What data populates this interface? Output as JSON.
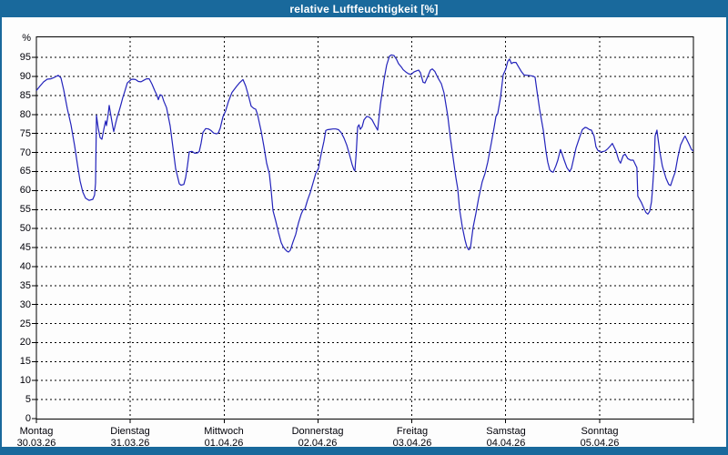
{
  "window": {
    "title": "relative Luftfeuchtigkeit [%]"
  },
  "colors": {
    "titlebar_bg": "#19699c",
    "titlebar_text": "#ffffff",
    "window_border": "#19699c",
    "content_bg": "#fdfdfd",
    "plot_bg": "#fefefe",
    "grid": "#000000",
    "axis": "#000000",
    "label_text": "#000008",
    "line": "#2323bb"
  },
  "chart_data": {
    "type": "line",
    "title": "relative Luftfeuchtigkeit [%]",
    "unit_label": "%",
    "ylim": [
      0,
      100.5
    ],
    "y_ticks": [
      95,
      90,
      85,
      80,
      75,
      70,
      65,
      60,
      55,
      50,
      45,
      40,
      35,
      30,
      25,
      20,
      15,
      10,
      5,
      0
    ],
    "grid": "dashed-black",
    "legend": "none",
    "xlim_days": [
      0,
      7
    ],
    "x_labels": [
      {
        "weekday": "Montag",
        "date": "30.03.26"
      },
      {
        "weekday": "Dienstag",
        "date": "31.03.26"
      },
      {
        "weekday": "Mittwoch",
        "date": "01.04.26"
      },
      {
        "weekday": "Donnerstag",
        "date": "02.04.26"
      },
      {
        "weekday": "Freitag",
        "date": "03.04.26"
      },
      {
        "weekday": "Samstag",
        "date": "04.04.26"
      },
      {
        "weekday": "Sonntag",
        "date": "05.04.26"
      }
    ],
    "series": [
      {
        "name": "relative Luftfeuchtigkeit",
        "color": "#2323bb",
        "points": [
          [
            0.0,
            86.3
          ],
          [
            0.039,
            87.5
          ],
          [
            0.078,
            88.6
          ],
          [
            0.116,
            89.3
          ],
          [
            0.155,
            89.4
          ],
          [
            0.194,
            89.8
          ],
          [
            0.233,
            90.3
          ],
          [
            0.262,
            89.6
          ],
          [
            0.291,
            86.5
          ],
          [
            0.33,
            81.5
          ],
          [
            0.368,
            77.3
          ],
          [
            0.407,
            71.8
          ],
          [
            0.436,
            67.0
          ],
          [
            0.465,
            62.5
          ],
          [
            0.494,
            59.6
          ],
          [
            0.524,
            58.0
          ],
          [
            0.562,
            57.4
          ],
          [
            0.601,
            57.7
          ],
          [
            0.62,
            58.8
          ],
          [
            0.63,
            62.0
          ],
          [
            0.64,
            79.8
          ],
          [
            0.659,
            76.3
          ],
          [
            0.679,
            73.9
          ],
          [
            0.698,
            73.5
          ],
          [
            0.717,
            76.0
          ],
          [
            0.737,
            78.3
          ],
          [
            0.747,
            77.1
          ],
          [
            0.766,
            80.3
          ],
          [
            0.776,
            82.4
          ],
          [
            0.795,
            79.5
          ],
          [
            0.814,
            76.7
          ],
          [
            0.824,
            75.5
          ],
          [
            0.843,
            77.5
          ],
          [
            0.863,
            79.5
          ],
          [
            0.882,
            81.0
          ],
          [
            0.902,
            82.7
          ],
          [
            0.921,
            84.5
          ],
          [
            0.94,
            86.0
          ],
          [
            0.969,
            88.3
          ],
          [
            1.008,
            89.2
          ],
          [
            1.028,
            89.3
          ],
          [
            1.057,
            89.2
          ],
          [
            1.086,
            88.7
          ],
          [
            1.115,
            88.6
          ],
          [
            1.144,
            89.0
          ],
          [
            1.173,
            89.4
          ],
          [
            1.202,
            89.4
          ],
          [
            1.231,
            88.0
          ],
          [
            1.26,
            86.3
          ],
          [
            1.28,
            85.3
          ],
          [
            1.299,
            83.9
          ],
          [
            1.318,
            85.2
          ],
          [
            1.338,
            85.0
          ],
          [
            1.357,
            83.5
          ],
          [
            1.386,
            81.8
          ],
          [
            1.425,
            77.0
          ],
          [
            1.454,
            71.4
          ],
          [
            1.483,
            65.8
          ],
          [
            1.522,
            61.8
          ],
          [
            1.541,
            61.4
          ],
          [
            1.571,
            61.6
          ],
          [
            1.59,
            63.4
          ],
          [
            1.609,
            66.5
          ],
          [
            1.629,
            70.2
          ],
          [
            1.658,
            70.3
          ],
          [
            1.687,
            69.8
          ],
          [
            1.716,
            69.9
          ],
          [
            1.735,
            70.3
          ],
          [
            1.755,
            72.5
          ],
          [
            1.774,
            75.3
          ],
          [
            1.803,
            76.3
          ],
          [
            1.832,
            76.2
          ],
          [
            1.861,
            75.8
          ],
          [
            1.89,
            75.1
          ],
          [
            1.92,
            74.9
          ],
          [
            1.939,
            75.2
          ],
          [
            1.958,
            76.4
          ],
          [
            1.988,
            79.4
          ],
          [
            2.017,
            81.0
          ],
          [
            2.046,
            83.4
          ],
          [
            2.084,
            85.8
          ],
          [
            2.133,
            87.4
          ],
          [
            2.162,
            88.3
          ],
          [
            2.201,
            89.2
          ],
          [
            2.23,
            87.5
          ],
          [
            2.259,
            85.0
          ],
          [
            2.288,
            82.2
          ],
          [
            2.317,
            81.6
          ],
          [
            2.337,
            81.4
          ],
          [
            2.356,
            80.0
          ],
          [
            2.395,
            75.6
          ],
          [
            2.424,
            71.6
          ],
          [
            2.453,
            67.2
          ],
          [
            2.482,
            64.4
          ],
          [
            2.501,
            60.0
          ],
          [
            2.521,
            54.7
          ],
          [
            2.55,
            52.0
          ],
          [
            2.579,
            49.0
          ],
          [
            2.608,
            46.3
          ],
          [
            2.627,
            45.3
          ],
          [
            2.647,
            44.6
          ],
          [
            2.666,
            44.1
          ],
          [
            2.686,
            43.8
          ],
          [
            2.705,
            44.3
          ],
          [
            2.734,
            46.5
          ],
          [
            2.763,
            48.5
          ],
          [
            2.792,
            51.5
          ],
          [
            2.821,
            53.8
          ],
          [
            2.841,
            54.9
          ],
          [
            2.86,
            55.1
          ],
          [
            2.889,
            57.5
          ],
          [
            2.918,
            59.5
          ],
          [
            2.947,
            62.0
          ],
          [
            2.976,
            64.5
          ],
          [
            3.005,
            65.8
          ],
          [
            3.025,
            68.5
          ],
          [
            3.044,
            70.8
          ],
          [
            3.064,
            73.0
          ],
          [
            3.083,
            75.8
          ],
          [
            3.102,
            76.0
          ],
          [
            3.131,
            76.1
          ],
          [
            3.16,
            76.2
          ],
          [
            3.19,
            76.2
          ],
          [
            3.219,
            76.0
          ],
          [
            3.248,
            75.2
          ],
          [
            3.277,
            73.8
          ],
          [
            3.306,
            72.0
          ],
          [
            3.335,
            69.5
          ],
          [
            3.364,
            66.8
          ],
          [
            3.383,
            65.5
          ],
          [
            3.393,
            65.2
          ],
          [
            3.408,
            70.0
          ],
          [
            3.422,
            76.7
          ],
          [
            3.437,
            77.3
          ],
          [
            3.451,
            76.1
          ],
          [
            3.471,
            76.8
          ],
          [
            3.49,
            78.6
          ],
          [
            3.519,
            79.5
          ],
          [
            3.548,
            79.3
          ],
          [
            3.577,
            78.6
          ],
          [
            3.606,
            77.2
          ],
          [
            3.636,
            75.9
          ],
          [
            3.665,
            82.6
          ],
          [
            3.703,
            89.0
          ],
          [
            3.732,
            93.0
          ],
          [
            3.761,
            95.3
          ],
          [
            3.781,
            95.7
          ],
          [
            3.81,
            95.5
          ],
          [
            3.839,
            94.4
          ],
          [
            3.858,
            93.4
          ],
          [
            3.888,
            92.5
          ],
          [
            3.907,
            91.8
          ],
          [
            3.936,
            91.2
          ],
          [
            3.965,
            90.7
          ],
          [
            3.994,
            90.6
          ],
          [
            4.023,
            91.2
          ],
          [
            4.052,
            91.5
          ],
          [
            4.072,
            91.7
          ],
          [
            4.091,
            91.0
          ],
          [
            4.12,
            88.5
          ],
          [
            4.14,
            88.3
          ],
          [
            4.169,
            90.0
          ],
          [
            4.198,
            91.7
          ],
          [
            4.217,
            92.0
          ],
          [
            4.246,
            91.3
          ],
          [
            4.275,
            89.8
          ],
          [
            4.314,
            88.1
          ],
          [
            4.343,
            85.7
          ],
          [
            4.382,
            79.7
          ],
          [
            4.411,
            73.7
          ],
          [
            4.44,
            68.5
          ],
          [
            4.469,
            63.5
          ],
          [
            4.489,
            60.5
          ],
          [
            4.508,
            55.1
          ],
          [
            4.537,
            50.5
          ],
          [
            4.566,
            47.0
          ],
          [
            4.586,
            45.2
          ],
          [
            4.605,
            44.4
          ],
          [
            4.624,
            44.8
          ],
          [
            4.653,
            50.3
          ],
          [
            4.683,
            54.0
          ],
          [
            4.712,
            58.0
          ],
          [
            4.75,
            62.3
          ],
          [
            4.78,
            64.5
          ],
          [
            4.809,
            67.5
          ],
          [
            4.847,
            72.5
          ],
          [
            4.876,
            76.5
          ],
          [
            4.896,
            79.5
          ],
          [
            4.915,
            80.2
          ],
          [
            4.944,
            84.3
          ],
          [
            4.973,
            90.4
          ],
          [
            5.002,
            92.0
          ],
          [
            5.022,
            94.0
          ],
          [
            5.041,
            94.6
          ],
          [
            5.061,
            93.4
          ],
          [
            5.08,
            93.7
          ],
          [
            5.109,
            93.7
          ],
          [
            5.138,
            92.5
          ],
          [
            5.167,
            91.3
          ],
          [
            5.196,
            90.4
          ],
          [
            5.235,
            90.3
          ],
          [
            5.264,
            90.2
          ],
          [
            5.293,
            90.1
          ],
          [
            5.313,
            89.8
          ],
          [
            5.332,
            86.3
          ],
          [
            5.361,
            81.5
          ],
          [
            5.4,
            75.9
          ],
          [
            5.429,
            70.3
          ],
          [
            5.448,
            67.5
          ],
          [
            5.468,
            65.5
          ],
          [
            5.487,
            65.0
          ],
          [
            5.506,
            64.8
          ],
          [
            5.535,
            66.5
          ],
          [
            5.555,
            68.0
          ],
          [
            5.584,
            70.8
          ],
          [
            5.603,
            69.5
          ],
          [
            5.623,
            68.0
          ],
          [
            5.652,
            66.0
          ],
          [
            5.681,
            65.0
          ],
          [
            5.7,
            65.8
          ],
          [
            5.72,
            68.0
          ],
          [
            5.749,
            71.2
          ],
          [
            5.787,
            74.0
          ],
          [
            5.816,
            76.0
          ],
          [
            5.846,
            76.6
          ],
          [
            5.865,
            76.5
          ],
          [
            5.894,
            76.0
          ],
          [
            5.913,
            75.9
          ],
          [
            5.942,
            74.3
          ],
          [
            5.962,
            71.5
          ],
          [
            5.981,
            70.6
          ],
          [
            6.01,
            70.1
          ],
          [
            6.039,
            70.3
          ],
          [
            6.059,
            70.4
          ],
          [
            6.088,
            71.0
          ],
          [
            6.117,
            71.8
          ],
          [
            6.136,
            72.4
          ],
          [
            6.175,
            70.4
          ],
          [
            6.204,
            68.0
          ],
          [
            6.223,
            67.2
          ],
          [
            6.252,
            69.2
          ],
          [
            6.272,
            69.6
          ],
          [
            6.301,
            68.4
          ],
          [
            6.33,
            68.0
          ],
          [
            6.359,
            68.0
          ],
          [
            6.388,
            66.5
          ],
          [
            6.398,
            66.0
          ],
          [
            6.408,
            58.5
          ],
          [
            6.446,
            56.8
          ],
          [
            6.475,
            55.2
          ],
          [
            6.495,
            54.2
          ],
          [
            6.514,
            53.8
          ],
          [
            6.534,
            54.5
          ],
          [
            6.553,
            57.0
          ],
          [
            6.563,
            59.9
          ],
          [
            6.582,
            67.1
          ],
          [
            6.592,
            74.3
          ],
          [
            6.611,
            75.9
          ],
          [
            6.64,
            70.4
          ],
          [
            6.669,
            66.4
          ],
          [
            6.708,
            63.2
          ],
          [
            6.737,
            61.6
          ],
          [
            6.757,
            61.3
          ],
          [
            6.786,
            63.5
          ],
          [
            6.805,
            64.8
          ],
          [
            6.834,
            68.8
          ],
          [
            6.863,
            72.0
          ],
          [
            6.902,
            74.0
          ],
          [
            6.912,
            74.3
          ],
          [
            6.95,
            72.4
          ],
          [
            6.979,
            70.8
          ],
          [
            6.999,
            70.4
          ]
        ]
      }
    ]
  }
}
